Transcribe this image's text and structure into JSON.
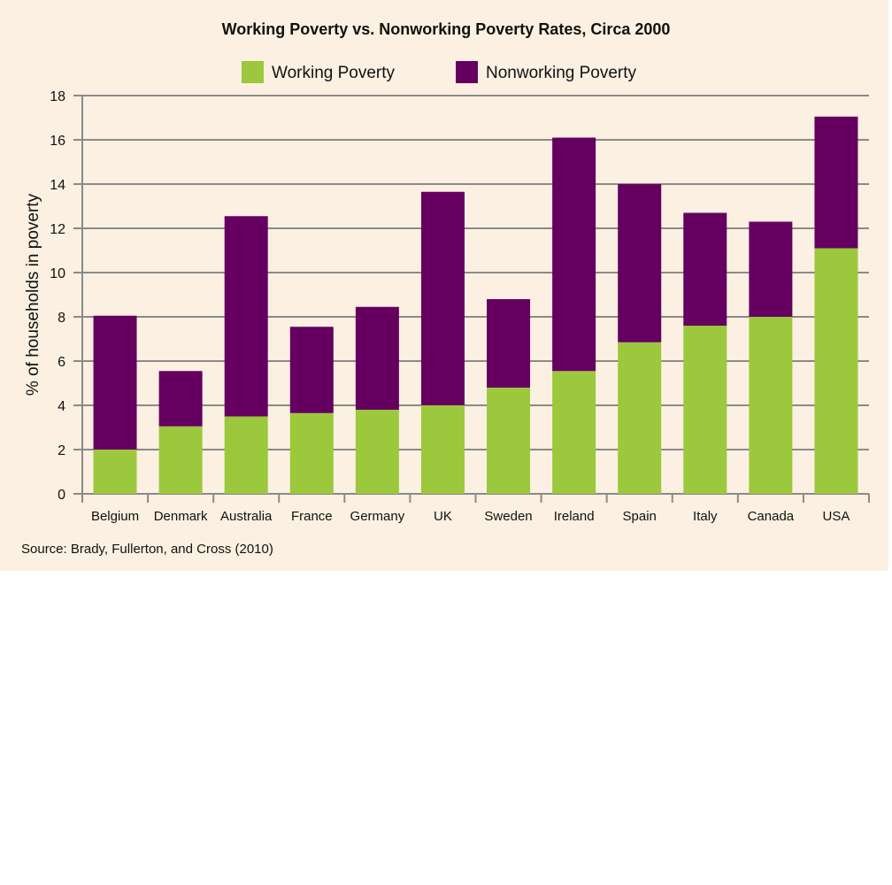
{
  "chart_data": {
    "type": "bar",
    "stacked": true,
    "title": "Working Poverty vs. Nonworking Poverty Rates, Circa 2000",
    "xlabel": "",
    "ylabel": "% of households in poverty",
    "ylim": [
      0,
      18
    ],
    "yticks": [
      0,
      2,
      4,
      6,
      8,
      10,
      12,
      14,
      16,
      18
    ],
    "grid": true,
    "legend_position": "top-center",
    "categories": [
      "Belgium",
      "Denmark",
      "Australia",
      "France",
      "Germany",
      "UK",
      "Sweden",
      "Ireland",
      "Spain",
      "Italy",
      "Canada",
      "USA"
    ],
    "series": [
      {
        "name": "Working Poverty",
        "color": "#9bc83c",
        "values": [
          2.0,
          3.05,
          3.5,
          3.65,
          3.8,
          4.0,
          4.8,
          5.55,
          6.85,
          7.6,
          8.0,
          11.1
        ]
      },
      {
        "name": "Nonworking Poverty",
        "color": "#650060",
        "values": [
          6.05,
          2.5,
          9.05,
          3.9,
          4.65,
          9.65,
          4.0,
          10.55,
          7.15,
          5.1,
          4.3,
          5.95
        ]
      }
    ],
    "source": "Source: Brady, Fullerton, and Cross (2010)"
  }
}
